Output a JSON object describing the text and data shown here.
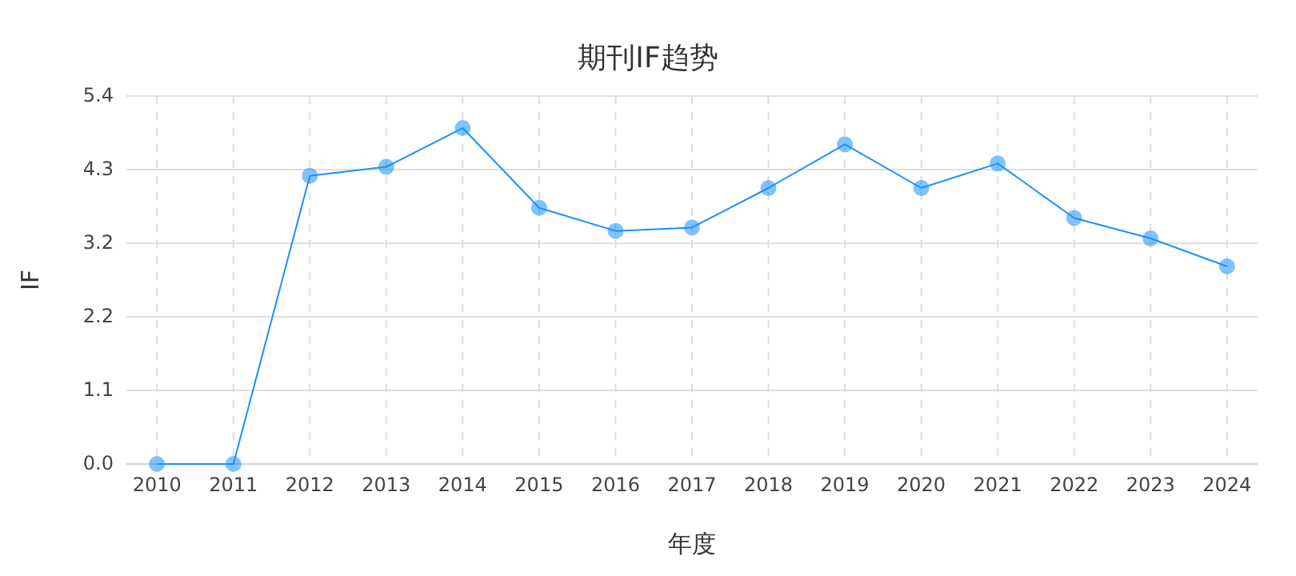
{
  "chart_data": {
    "type": "line",
    "title": "期刊IF趋势",
    "xlabel": "年度",
    "ylabel": "IF",
    "categories": [
      "2010",
      "2011",
      "2012",
      "2013",
      "2014",
      "2015",
      "2016",
      "2017",
      "2018",
      "2019",
      "2020",
      "2021",
      "2022",
      "2023",
      "2024"
    ],
    "series": [
      {
        "color": "#1890ff",
        "values": [
          0,
          0,
          4.23,
          4.36,
          4.93,
          3.76,
          3.42,
          3.47,
          4.05,
          4.69,
          4.05,
          4.41,
          3.61,
          3.31,
          2.9
        ]
      }
    ],
    "ylim": [
      0,
      5.4
    ],
    "yticks": [
      {
        "value": 0,
        "label": "0.0"
      },
      {
        "value": 1.08,
        "label": "1.1"
      },
      {
        "value": 2.16,
        "label": "2.2"
      },
      {
        "value": 3.24,
        "label": "3.2"
      },
      {
        "value": 4.32,
        "label": "4.3"
      },
      {
        "value": 5.4,
        "label": "5.4"
      }
    ],
    "grid": true,
    "marker": "circle",
    "line_style": "solid"
  }
}
